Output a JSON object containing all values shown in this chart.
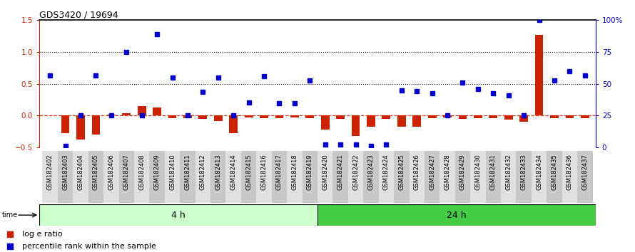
{
  "title": "GDS3420 / 19694",
  "samples": [
    "GSM182402",
    "GSM182403",
    "GSM182404",
    "GSM182405",
    "GSM182406",
    "GSM182407",
    "GSM182408",
    "GSM182409",
    "GSM182410",
    "GSM182411",
    "GSM182412",
    "GSM182413",
    "GSM182414",
    "GSM182415",
    "GSM182416",
    "GSM182417",
    "GSM182418",
    "GSM182419",
    "GSM182420",
    "GSM182421",
    "GSM182422",
    "GSM182423",
    "GSM182424",
    "GSM182425",
    "GSM182426",
    "GSM182427",
    "GSM182428",
    "GSM182429",
    "GSM182430",
    "GSM182431",
    "GSM182432",
    "GSM182433",
    "GSM182434",
    "GSM182435",
    "GSM182436",
    "GSM182437"
  ],
  "log_ratio": [
    0.0,
    -0.28,
    -0.38,
    -0.3,
    0.02,
    0.04,
    0.15,
    0.13,
    -0.04,
    -0.04,
    -0.05,
    -0.08,
    -0.27,
    -0.03,
    -0.04,
    -0.04,
    -0.03,
    -0.04,
    -0.22,
    -0.05,
    -0.32,
    -0.17,
    -0.05,
    -0.17,
    -0.18,
    -0.04,
    -0.03,
    -0.05,
    -0.04,
    -0.04,
    -0.06,
    -0.1,
    1.27,
    -0.04,
    -0.04,
    -0.04
  ],
  "percentile_left": [
    0.63,
    -0.48,
    0.0,
    0.63,
    0.0,
    1.0,
    0.0,
    1.28,
    0.6,
    0.0,
    0.37,
    0.6,
    0.0,
    0.21,
    0.62,
    0.2,
    0.2,
    0.55,
    -0.45,
    -0.45,
    -0.45,
    -0.48,
    -0.45,
    0.4,
    0.38,
    0.35,
    0.0,
    0.52,
    0.42,
    0.35,
    0.32,
    0.0,
    1.5,
    0.55,
    0.7,
    0.63
  ],
  "group1_size": 18,
  "group1_label": "4 h",
  "group2_label": "24 h",
  "left_ylim": [
    -0.5,
    1.5
  ],
  "right_ylim": [
    0,
    100
  ],
  "left_yticks": [
    -0.5,
    0.0,
    0.5,
    1.0,
    1.5
  ],
  "right_yticks": [
    0,
    25,
    50,
    75,
    100
  ],
  "hline_dotted_vals": [
    1.0,
    0.5
  ],
  "bar_color": "#cc2200",
  "dot_color": "#0000cc",
  "group1_color": "#ccffcc",
  "group2_color": "#44cc44",
  "label_col_even": "#e0e0e0",
  "label_col_odd": "#c8c8c8"
}
